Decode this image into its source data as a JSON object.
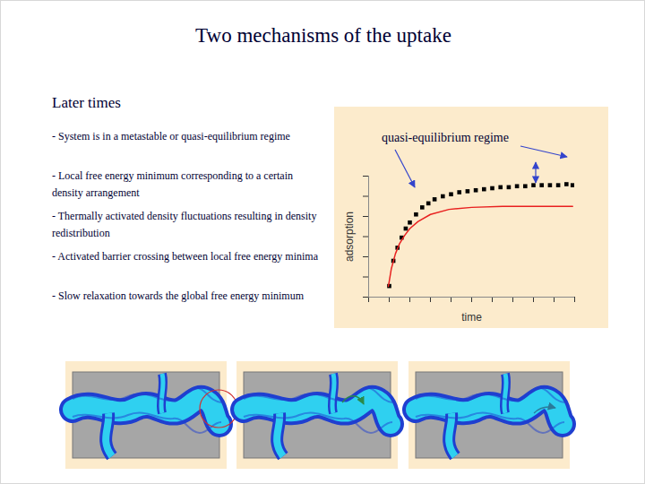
{
  "slide": {
    "title": "Two mechanisms of the uptake",
    "heading": "Later times",
    "bullets": [
      "- System is in a metastable or quasi-equilibrium regime",
      "- Local free energy minimum corresponding to a certain density arrangement",
      "- Thermally activated density fluctuations resulting in density redistribution",
      "- Activated barrier crossing between local free energy minima",
      "- Slow relaxation towards the global free energy minimum"
    ]
  },
  "chart_data": {
    "type": "line",
    "xlabel": "time",
    "ylabel": "adsorption",
    "annotation": "quasi-equilibrium regime",
    "xlim": [
      0,
      10
    ],
    "ylim": [
      0,
      12
    ],
    "xticks": [
      0,
      1,
      2,
      3,
      4,
      5,
      6,
      7,
      8,
      9,
      10
    ],
    "yticks": [
      0,
      2,
      4,
      6,
      8,
      10,
      12
    ],
    "tick_labels": false,
    "series": [
      {
        "type": "scatter",
        "color": "#000000",
        "marker": "square",
        "x": [
          1.0,
          1.2,
          1.4,
          1.6,
          1.8,
          2.0,
          2.3,
          2.6,
          2.9,
          3.2,
          3.6,
          4.0,
          4.4,
          4.8,
          5.2,
          5.6,
          6.0,
          6.4,
          6.8,
          7.2,
          7.6,
          8.0,
          8.4,
          8.8,
          9.2,
          9.6,
          9.9
        ],
        "values": [
          1.1,
          3.6,
          4.9,
          5.9,
          6.8,
          7.4,
          8.2,
          8.9,
          9.3,
          9.7,
          10.0,
          10.2,
          10.4,
          10.5,
          10.6,
          10.7,
          10.8,
          10.9,
          10.9,
          11.0,
          11.0,
          11.1,
          11.1,
          11.1,
          11.1,
          11.2,
          11.1
        ]
      },
      {
        "type": "line",
        "color": "#e8201f",
        "line_style": "solid",
        "x": [
          0.96,
          1.1,
          1.3,
          1.5,
          1.74,
          2.0,
          2.4,
          3.0,
          3.9,
          5.0,
          6.5,
          8.0,
          9.9
        ],
        "values": [
          1.07,
          2.8,
          4.3,
          5.3,
          6.1,
          6.8,
          7.5,
          8.2,
          8.7,
          8.9,
          9.0,
          9.0,
          9.0
        ]
      }
    ]
  }
}
